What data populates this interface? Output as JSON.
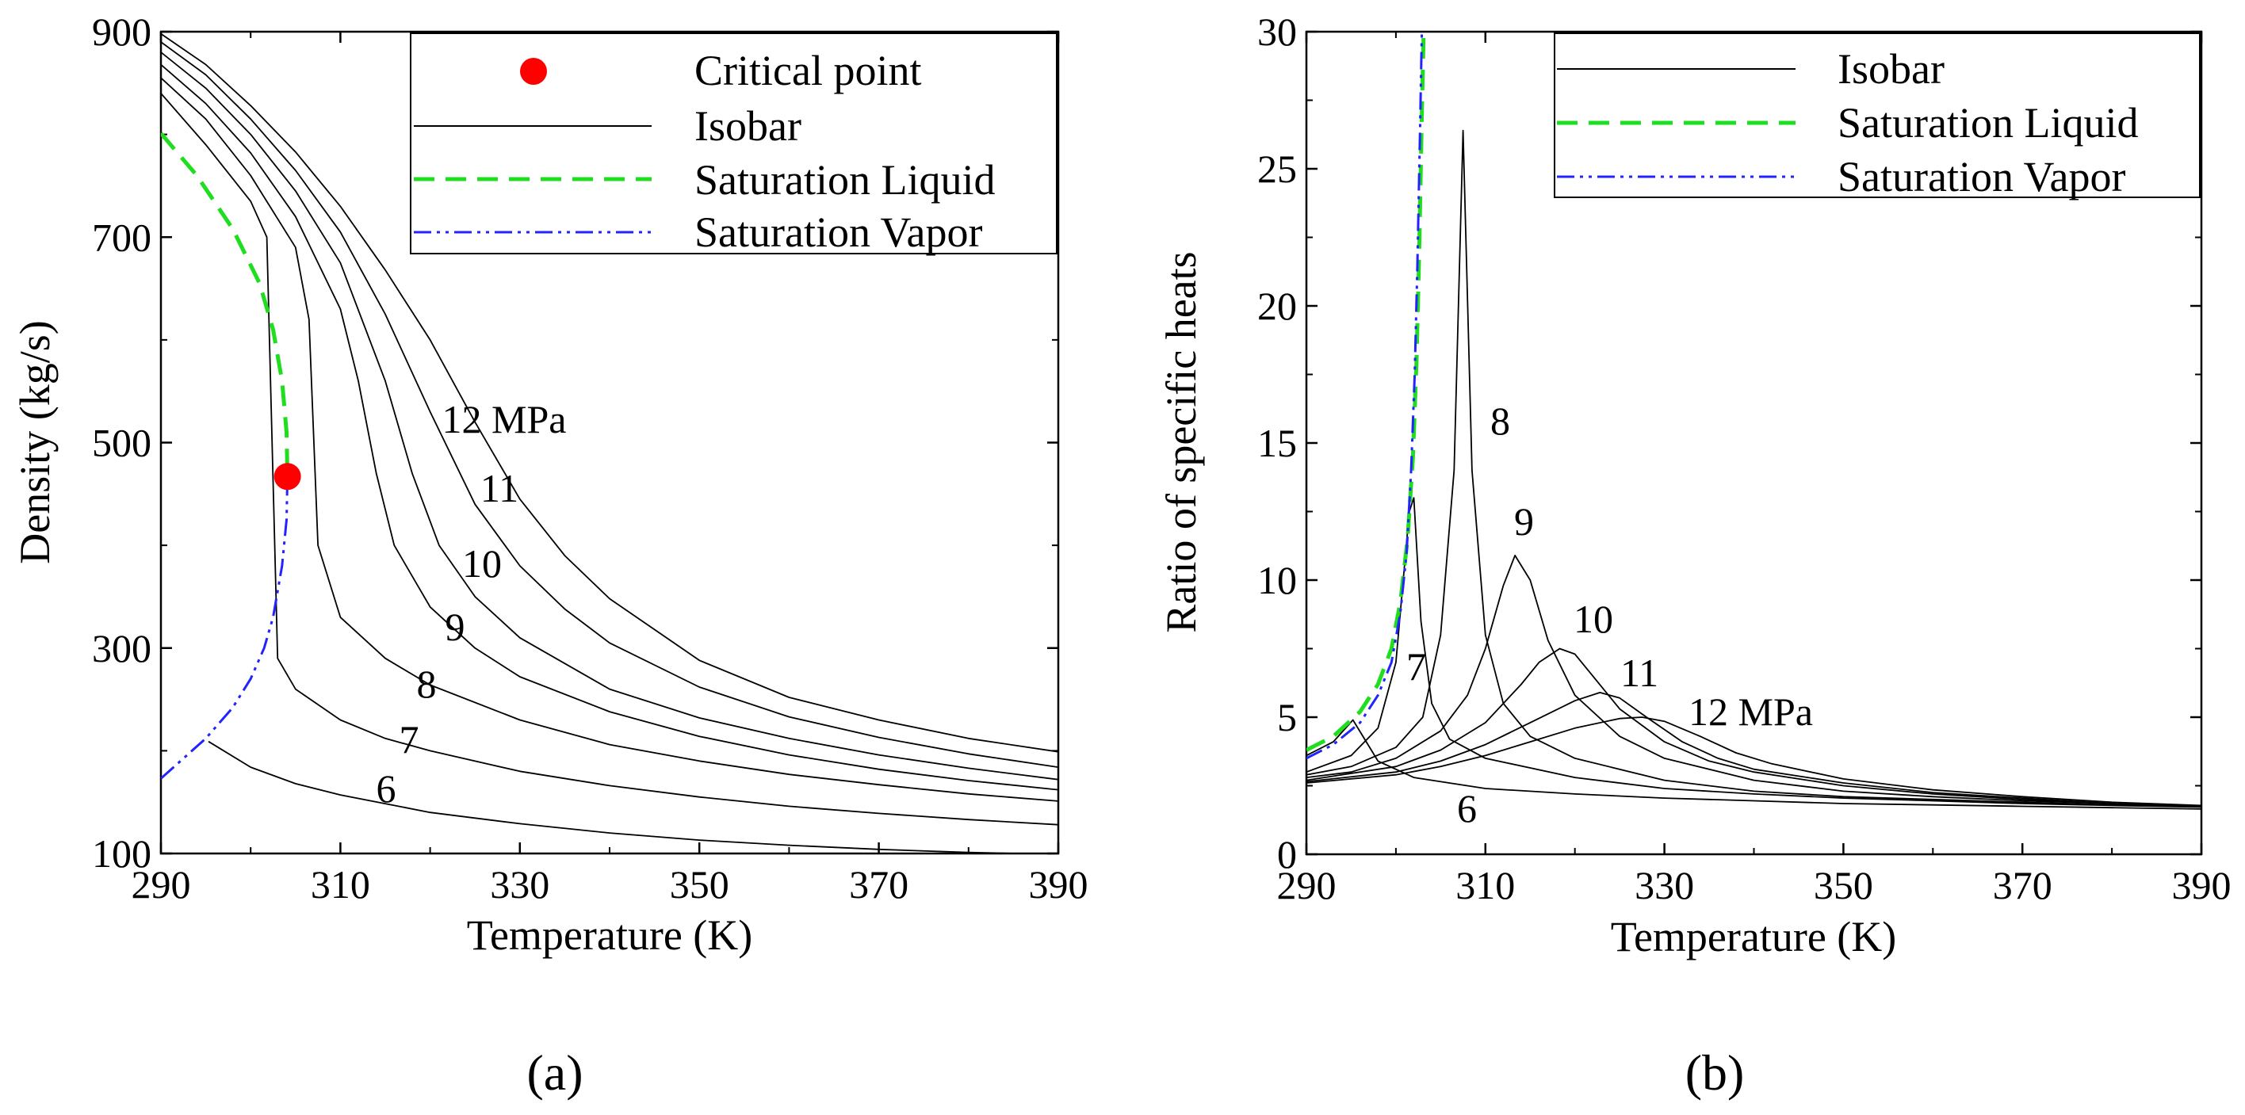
{
  "chart_data": [
    {
      "id": "a",
      "type": "line",
      "panel_label": "(a)",
      "xlabel": "Temperature (K)",
      "ylabel": "Density (kg/s)",
      "xlim": [
        290,
        390
      ],
      "ylim": [
        100,
        900
      ],
      "xticks": [
        "290",
        "310",
        "330",
        "350",
        "370",
        "390"
      ],
      "yticks": [
        "100",
        "300",
        "500",
        "700",
        "900"
      ],
      "legend": {
        "position": "top-right",
        "entries": [
          "Critical point",
          "Isobar",
          "Saturation Liquid",
          "Saturation Vapor"
        ]
      },
      "critical_point": {
        "x": 304.1,
        "y": 467
      },
      "saturation_liquid": {
        "x": [
          290,
          294,
          298,
          301,
          302.5,
          303.5,
          304.0,
          304.1
        ],
        "y": [
          801,
          760,
          708,
          655,
          610,
          560,
          510,
          467
        ]
      },
      "saturation_vapor": {
        "x": [
          290,
          295,
          298,
          300,
          301.5,
          302.5,
          303.5,
          304.0,
          304.1
        ],
        "y": [
          173,
          212,
          242,
          270,
          300,
          330,
          380,
          425,
          467
        ]
      },
      "series": [
        {
          "name": "6",
          "label": "6",
          "x": [
            295.3,
            300,
            305,
            310,
            320,
            330,
            340,
            350,
            360,
            370,
            380,
            390
          ],
          "y": [
            209,
            184,
            168,
            157,
            140,
            129,
            120,
            113,
            108,
            104,
            101,
            99
          ]
        },
        {
          "name": "7",
          "label": "7",
          "x": [
            290,
            295,
            300,
            301.8,
            303,
            305,
            310,
            315,
            320,
            330,
            340,
            350,
            360,
            370,
            380,
            390
          ],
          "y": [
            840,
            790,
            735,
            700,
            290,
            260,
            230,
            212,
            200,
            180,
            166,
            155,
            146,
            139,
            133,
            128
          ]
        },
        {
          "name": "8",
          "label": "8",
          "x": [
            290,
            295,
            300,
            305,
            306.5,
            307.5,
            310,
            315,
            320,
            330,
            340,
            350,
            360,
            370,
            380,
            390
          ],
          "y": [
            855,
            815,
            760,
            690,
            620,
            400,
            330,
            290,
            264,
            230,
            206,
            190,
            177,
            167,
            158,
            151
          ]
        },
        {
          "name": "9",
          "label": "9",
          "x": [
            290,
            295,
            300,
            305,
            310,
            312,
            314,
            316,
            320,
            325,
            330,
            340,
            350,
            360,
            370,
            380,
            390
          ],
          "y": [
            868,
            830,
            782,
            720,
            630,
            560,
            470,
            400,
            340,
            300,
            272,
            238,
            214,
            196,
            182,
            171,
            162
          ]
        },
        {
          "name": "10",
          "label": "10",
          "x": [
            290,
            295,
            300,
            305,
            310,
            315,
            318,
            321,
            325,
            330,
            340,
            350,
            360,
            370,
            380,
            390
          ],
          "y": [
            880,
            845,
            800,
            745,
            675,
            560,
            470,
            400,
            350,
            310,
            260,
            232,
            212,
            196,
            183,
            172
          ]
        },
        {
          "name": "11",
          "label": "11",
          "x": [
            290,
            295,
            300,
            305,
            310,
            315,
            320,
            325,
            330,
            335,
            340,
            350,
            360,
            370,
            380,
            390
          ],
          "y": [
            890,
            858,
            815,
            765,
            705,
            625,
            530,
            440,
            380,
            338,
            305,
            262,
            233,
            213,
            197,
            184
          ]
        },
        {
          "name": "12",
          "label": "12 MPa",
          "x": [
            290,
            295,
            300,
            305,
            310,
            315,
            320,
            325,
            330,
            335,
            340,
            350,
            360,
            370,
            380,
            390
          ],
          "y": [
            898,
            868,
            828,
            783,
            730,
            668,
            600,
            520,
            445,
            390,
            348,
            288,
            252,
            230,
            212,
            199
          ]
        }
      ]
    },
    {
      "id": "b",
      "type": "line",
      "panel_label": "(b)",
      "xlabel": "Temperature (K)",
      "ylabel": "Ratio of specific heats",
      "xlim": [
        290,
        390
      ],
      "ylim": [
        0,
        30
      ],
      "xticks": [
        "290",
        "310",
        "330",
        "350",
        "370",
        "390"
      ],
      "yticks": [
        "0",
        "5",
        "10",
        "15",
        "20",
        "25",
        "30"
      ],
      "legend": {
        "position": "top-right",
        "entries": [
          "Isobar",
          "Saturation Liquid",
          "Saturation Vapor"
        ]
      },
      "saturation_liquid": {
        "x": [
          290,
          293,
          296,
          298,
          299.5,
          300.5,
          301.3,
          301.9,
          302.3,
          302.6,
          302.9,
          303.1
        ],
        "y": [
          3.8,
          4.3,
          5.2,
          6.2,
          7.5,
          9.2,
          11.5,
          14.5,
          18.0,
          22.0,
          27.0,
          30.0
        ]
      },
      "saturation_vapor": {
        "x": [
          290,
          293,
          296,
          298,
          299.5,
          300.5,
          301.2,
          301.7,
          302.1,
          302.4,
          302.7,
          302.9
        ],
        "y": [
          3.5,
          4.0,
          4.8,
          5.8,
          7.0,
          8.8,
          11.0,
          14.0,
          17.5,
          21.5,
          26.5,
          30.0
        ]
      },
      "series": [
        {
          "name": "6",
          "label": "6",
          "x": [
            290,
            293,
            295.2,
            298,
            302,
            310,
            320,
            330,
            340,
            350,
            360,
            370,
            380,
            390
          ],
          "y": [
            3.6,
            4.1,
            4.9,
            3.4,
            2.8,
            2.4,
            2.2,
            2.05,
            1.95,
            1.85,
            1.8,
            1.75,
            1.7,
            1.65
          ]
        },
        {
          "name": "7",
          "label": "7",
          "x": [
            290,
            295,
            298,
            300,
            301.5,
            302,
            302.8,
            304,
            306,
            310,
            320,
            330,
            340,
            350,
            360,
            370,
            380,
            390
          ],
          "y": [
            3.0,
            3.6,
            4.6,
            7.0,
            12.5,
            13.0,
            8.5,
            5.5,
            4.2,
            3.5,
            2.8,
            2.4,
            2.2,
            2.05,
            1.95,
            1.85,
            1.78,
            1.72
          ]
        },
        {
          "name": "8",
          "label": "8",
          "x": [
            290,
            295,
            300,
            303,
            305,
            306.5,
            307.5,
            308.5,
            310,
            312,
            315,
            320,
            330,
            340,
            350,
            360,
            370,
            380,
            390
          ],
          "y": [
            2.9,
            3.2,
            3.9,
            5.0,
            8.0,
            14.0,
            26.4,
            14.0,
            8.0,
            5.5,
            4.3,
            3.5,
            2.7,
            2.3,
            2.1,
            2.0,
            1.9,
            1.8,
            1.75
          ]
        },
        {
          "name": "9",
          "label": "9",
          "x": [
            290,
            295,
            300,
            305,
            308,
            310,
            312,
            313.3,
            315,
            317,
            320,
            325,
            330,
            340,
            350,
            360,
            370,
            380,
            390
          ],
          "y": [
            2.8,
            3.0,
            3.5,
            4.5,
            5.8,
            7.5,
            9.8,
            10.9,
            10.0,
            7.8,
            5.8,
            4.3,
            3.5,
            2.7,
            2.3,
            2.1,
            1.95,
            1.85,
            1.75
          ]
        },
        {
          "name": "10",
          "label": "10",
          "x": [
            290,
            300,
            305,
            310,
            314,
            316,
            318.3,
            320,
            322,
            325,
            330,
            335,
            340,
            350,
            360,
            370,
            380,
            390
          ],
          "y": [
            2.7,
            3.2,
            3.8,
            4.8,
            6.2,
            7.0,
            7.5,
            7.3,
            6.5,
            5.3,
            4.1,
            3.4,
            3.0,
            2.5,
            2.2,
            2.0,
            1.85,
            1.75
          ]
        },
        {
          "name": "11",
          "label": "11",
          "x": [
            290,
            300,
            305,
            310,
            315,
            320,
            322.8,
            325,
            328,
            332,
            336,
            340,
            350,
            360,
            370,
            380,
            390
          ],
          "y": [
            2.65,
            3.0,
            3.4,
            4.0,
            4.8,
            5.6,
            5.9,
            5.7,
            5.0,
            4.1,
            3.5,
            3.1,
            2.6,
            2.25,
            2.05,
            1.85,
            1.75
          ]
        },
        {
          "name": "12",
          "label": "12 MPa",
          "x": [
            290,
            300,
            305,
            310,
            315,
            320,
            325,
            327.5,
            330,
            334,
            338,
            342,
            350,
            360,
            370,
            380,
            390
          ],
          "y": [
            2.6,
            2.9,
            3.2,
            3.6,
            4.1,
            4.6,
            4.95,
            5.0,
            4.85,
            4.3,
            3.7,
            3.3,
            2.75,
            2.35,
            2.1,
            1.9,
            1.78
          ]
        }
      ]
    }
  ]
}
